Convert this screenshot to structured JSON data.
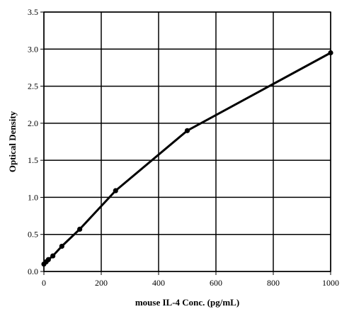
{
  "chart_data": {
    "type": "line",
    "title": "",
    "xlabel": "mouse IL-4 Conc. (pg/mL)",
    "ylabel": "Optical Density",
    "xlim": [
      0,
      1000
    ],
    "ylim": [
      0,
      3.5
    ],
    "x_ticks": [
      "0",
      "200",
      "400",
      "600",
      "800",
      "1000"
    ],
    "y_ticks": [
      "0.0",
      "0.5",
      "1.0",
      "1.5",
      "2.0",
      "2.5",
      "3.0",
      "3.5"
    ],
    "grid": true,
    "series": [
      {
        "x": [
          0,
          7.8,
          15.6,
          31.25,
          62.5,
          125,
          250,
          500,
          1000
        ],
        "y": [
          0.1,
          0.13,
          0.16,
          0.21,
          0.34,
          0.57,
          1.09,
          1.9,
          2.95
        ],
        "color": "#000000",
        "marker": "circle"
      }
    ]
  }
}
